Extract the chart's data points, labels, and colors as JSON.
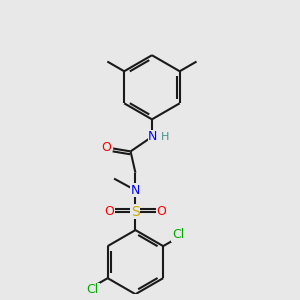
{
  "background_color": "#e8e8e8",
  "bond_color": "#1a1a1a",
  "atom_colors": {
    "O": "#ff0000",
    "N": "#0000ff",
    "H": "#4a9090",
    "S": "#ccaa00",
    "Cl": "#00aa00",
    "C": "#1a1a1a"
  },
  "fig_width": 3.0,
  "fig_height": 3.0,
  "dpi": 100
}
